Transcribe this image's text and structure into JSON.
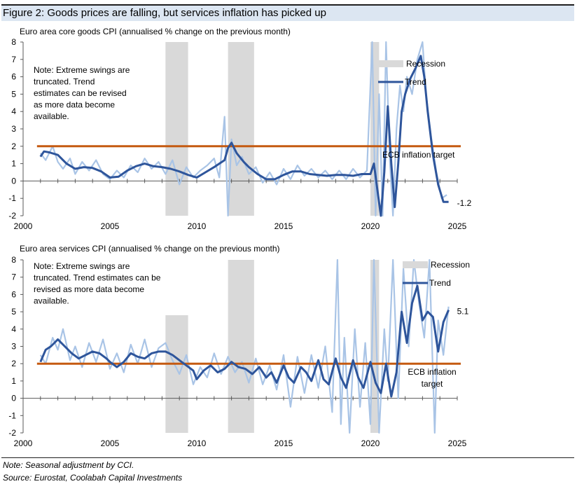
{
  "figure_title": "Figure 2: Goods prices are falling, but services inflation has picked up",
  "footer": {
    "note": "Note: Seasonal adjustment by CCI.",
    "source": "Source: Eurostat, Coolabah Capital Investments"
  },
  "colors": {
    "raw": "#a9c4e6",
    "trend": "#2e559b",
    "target": "#c55a11",
    "recession": "#d9d9d9",
    "title_band": "#dce6f2"
  },
  "chart_data": [
    {
      "type": "line",
      "title": "Euro area core goods CPI (annualised % change on the previous month)",
      "xlim": [
        2000,
        2025
      ],
      "ylim": [
        -2,
        8
      ],
      "xticks": [
        2000,
        2005,
        2010,
        2015,
        2020,
        2025
      ],
      "yticks": [
        -2,
        -1,
        0,
        1,
        2,
        3,
        4,
        5,
        6,
        7,
        8
      ],
      "note": "Note: Extreme swings are truncated. Trend estimates can be revised as more data become available.",
      "note_lines": [
        "Note: Extreme swings are",
        "truncated. Trend",
        "estimates can be revised",
        "as more data become",
        "available."
      ],
      "recessions": [
        [
          2008.2,
          2009.5
        ],
        [
          2011.8,
          2013.3
        ],
        [
          2020.0,
          2020.5
        ]
      ],
      "legend": {
        "recession": "Recession",
        "trend": "Trend"
      },
      "target": {
        "value": 2,
        "label": "ECB inflation target",
        "label_lines": [
          "ECB inflation target"
        ],
        "start": 2000.8
      },
      "end_label": "-1.2",
      "series": [
        {
          "name": "Trend",
          "x": [
            2001.0,
            2001.2,
            2001.5,
            2002.0,
            2002.5,
            2003.0,
            2003.5,
            2004.0,
            2004.5,
            2005.0,
            2005.5,
            2006.0,
            2006.5,
            2007.0,
            2007.5,
            2008.0,
            2008.5,
            2009.0,
            2009.5,
            2010.0,
            2010.5,
            2011.0,
            2011.3,
            2011.6,
            2011.8,
            2012.0,
            2012.3,
            2012.7,
            2013.0,
            2013.5,
            2014.0,
            2014.5,
            2015.0,
            2015.5,
            2016.0,
            2016.5,
            2017.0,
            2017.5,
            2018.0,
            2018.5,
            2019.0,
            2019.5,
            2020.0,
            2020.2,
            2020.4,
            2020.6,
            2020.8,
            2021.0,
            2021.2,
            2021.4,
            2021.6,
            2021.8,
            2022.0,
            2022.3,
            2022.6,
            2022.9,
            2023.1,
            2023.3,
            2023.6,
            2023.9,
            2024.2,
            2024.5
          ],
          "values": [
            1.4,
            1.7,
            1.65,
            1.5,
            1.0,
            0.7,
            0.8,
            0.75,
            0.55,
            0.2,
            0.25,
            0.6,
            0.85,
            1.0,
            0.85,
            0.8,
            0.7,
            0.55,
            0.35,
            0.2,
            0.5,
            0.8,
            1.0,
            1.2,
            1.9,
            2.2,
            1.6,
            1.1,
            0.8,
            0.4,
            0.1,
            0.1,
            0.35,
            0.55,
            0.55,
            0.4,
            0.35,
            0.3,
            0.35,
            0.35,
            0.3,
            0.4,
            0.4,
            1.0,
            -0.5,
            -2.0,
            0.5,
            4.3,
            1.0,
            -1.5,
            1.0,
            4.0,
            5.0,
            5.9,
            6.5,
            7.2,
            6.0,
            4.0,
            1.5,
            -0.2,
            -1.2,
            -1.2
          ]
        },
        {
          "name": "Raw (annualised m/m)",
          "x": [
            2001.0,
            2001.3,
            2001.7,
            2002.0,
            2002.3,
            2002.7,
            2003.0,
            2003.4,
            2003.8,
            2004.2,
            2004.6,
            2005.0,
            2005.4,
            2005.8,
            2006.2,
            2006.6,
            2007.0,
            2007.4,
            2007.8,
            2008.2,
            2008.6,
            2009.0,
            2009.4,
            2009.8,
            2010.2,
            2010.6,
            2011.0,
            2011.3,
            2011.6,
            2011.8,
            2012.0,
            2012.3,
            2012.6,
            2013.0,
            2013.4,
            2013.8,
            2014.2,
            2014.6,
            2015.0,
            2015.4,
            2015.8,
            2016.2,
            2016.6,
            2017.0,
            2017.4,
            2017.8,
            2018.2,
            2018.6,
            2019.0,
            2019.4,
            2019.8,
            2020.1,
            2020.3,
            2020.5,
            2020.7,
            2020.9,
            2021.1,
            2021.3,
            2021.5,
            2021.7,
            2021.9,
            2022.1,
            2022.4,
            2022.7,
            2023.0,
            2023.2,
            2023.5,
            2023.8,
            2024.1,
            2024.4
          ],
          "values": [
            1.6,
            1.2,
            2.0,
            1.1,
            0.7,
            1.3,
            0.4,
            1.1,
            0.6,
            1.2,
            0.4,
            0.1,
            0.6,
            0.2,
            0.9,
            0.5,
            1.3,
            0.7,
            1.1,
            0.4,
            1.2,
            -0.2,
            0.8,
            0.2,
            0.6,
            0.9,
            1.3,
            0.2,
            3.7,
            -2.0,
            2.4,
            0.9,
            1.4,
            0.4,
            0.8,
            -0.1,
            0.5,
            -0.2,
            0.7,
            0.1,
            0.9,
            0.3,
            0.7,
            0.2,
            0.6,
            0.1,
            0.6,
            0.1,
            0.7,
            0.2,
            0.6,
            8.0,
            -2.0,
            5.0,
            -2.0,
            8.0,
            1.5,
            -2.0,
            3.0,
            5.5,
            4.0,
            6.0,
            5.0,
            7.0,
            8.0,
            5.0,
            2.5,
            0.5,
            -1.0,
            -0.8
          ]
        }
      ]
    },
    {
      "type": "line",
      "title": "Euro area services CPI (annualised % change on the previous month)",
      "xlim": [
        2000,
        2025
      ],
      "ylim": [
        -2,
        8
      ],
      "xticks": [
        2000,
        2005,
        2010,
        2015,
        2020,
        2025
      ],
      "yticks": [
        -2,
        -1,
        0,
        1,
        2,
        3,
        4,
        5,
        6,
        7,
        8
      ],
      "note": "Note: Extreme swings are truncated. Trend estimates can be revised as more data become available.",
      "note_lines": [
        "Note: Extreme swings are",
        "truncated. Trend estimates can be",
        "revised as more data become",
        "available."
      ],
      "recessions": [
        [
          2008.2,
          2009.5
        ],
        [
          2011.8,
          2013.3
        ],
        [
          2020.0,
          2020.5
        ]
      ],
      "recession_tops": [
        4.8,
        8,
        8
      ],
      "legend": {
        "recession": "Recession",
        "trend": "Trend"
      },
      "target": {
        "value": 2,
        "label": "ECB inflation target",
        "label_lines": [
          "ECB inflation",
          "target"
        ],
        "start": 2000.8
      },
      "end_label": "5.1",
      "series": [
        {
          "name": "Trend",
          "x": [
            2001.0,
            2001.3,
            2001.6,
            2002.0,
            2002.4,
            2002.8,
            2003.2,
            2003.6,
            2004.0,
            2004.4,
            2004.8,
            2005.0,
            2005.4,
            2005.8,
            2006.2,
            2006.6,
            2007.0,
            2007.4,
            2007.8,
            2008.2,
            2008.6,
            2009.0,
            2009.4,
            2009.8,
            2010.0,
            2010.4,
            2010.8,
            2011.2,
            2011.6,
            2012.0,
            2012.4,
            2012.8,
            2013.2,
            2013.6,
            2014.0,
            2014.3,
            2014.6,
            2015.0,
            2015.3,
            2015.6,
            2016.0,
            2016.3,
            2016.6,
            2017.0,
            2017.3,
            2017.6,
            2018.0,
            2018.3,
            2018.6,
            2019.0,
            2019.3,
            2019.6,
            2020.0,
            2020.3,
            2020.6,
            2020.9,
            2021.2,
            2021.5,
            2021.8,
            2022.1,
            2022.4,
            2022.7,
            2023.0,
            2023.3,
            2023.6,
            2023.9,
            2024.2,
            2024.5
          ],
          "values": [
            2.1,
            2.8,
            3.0,
            3.4,
            3.0,
            2.6,
            2.3,
            2.5,
            2.7,
            2.6,
            2.3,
            2.1,
            1.8,
            2.1,
            2.6,
            2.4,
            2.3,
            2.6,
            2.7,
            2.7,
            2.5,
            2.2,
            1.9,
            1.6,
            1.1,
            1.6,
            1.9,
            1.5,
            1.7,
            2.1,
            1.8,
            1.7,
            1.4,
            1.8,
            1.2,
            1.5,
            0.9,
            1.9,
            1.2,
            0.9,
            1.8,
            1.5,
            1.0,
            2.2,
            1.1,
            0.8,
            2.3,
            1.2,
            0.6,
            2.2,
            1.2,
            0.6,
            2.1,
            0.9,
            0.3,
            2.0,
            0.1,
            1.5,
            5.0,
            3.2,
            5.5,
            6.5,
            4.5,
            5.0,
            4.7,
            2.7,
            4.4,
            5.1
          ]
        },
        {
          "name": "Raw (annualised m/m)",
          "x": [
            2001.0,
            2001.3,
            2001.7,
            2002.0,
            2002.3,
            2002.7,
            2003.0,
            2003.4,
            2003.8,
            2004.2,
            2004.6,
            2005.0,
            2005.4,
            2005.8,
            2006.2,
            2006.6,
            2007.0,
            2007.4,
            2007.8,
            2008.2,
            2008.6,
            2009.0,
            2009.4,
            2009.8,
            2010.2,
            2010.6,
            2011.0,
            2011.4,
            2011.8,
            2012.2,
            2012.6,
            2013.0,
            2013.4,
            2013.8,
            2014.2,
            2014.6,
            2015.0,
            2015.4,
            2015.8,
            2016.2,
            2016.6,
            2017.0,
            2017.4,
            2017.8,
            2018.1,
            2018.3,
            2018.5,
            2018.8,
            2019.1,
            2019.4,
            2019.7,
            2020.0,
            2020.2,
            2020.5,
            2020.8,
            2021.0,
            2021.3,
            2021.6,
            2021.9,
            2022.2,
            2022.5,
            2022.8,
            2023.1,
            2023.4,
            2023.7,
            2023.9,
            2024.2,
            2024.5
          ],
          "values": [
            2.5,
            2.0,
            3.5,
            2.8,
            4.0,
            2.2,
            3.0,
            1.8,
            3.2,
            2.1,
            3.4,
            1.7,
            2.6,
            1.5,
            3.1,
            2.0,
            3.4,
            1.8,
            2.9,
            3.2,
            2.2,
            1.4,
            2.5,
            0.8,
            1.8,
            1.2,
            2.6,
            1.4,
            2.4,
            1.5,
            2.1,
            0.9,
            2.3,
            0.8,
            1.9,
            0.5,
            2.5,
            -0.5,
            2.4,
            0.3,
            2.5,
            0.6,
            3.0,
            -0.8,
            8.0,
            -1.5,
            3.5,
            -2.0,
            4.0,
            -0.5,
            3.2,
            -1.5,
            8.0,
            -2.0,
            4.0,
            1.0,
            8.0,
            0.0,
            7.5,
            3.0,
            8.0,
            5.5,
            3.5,
            8.0,
            -2.0,
            4.5,
            2.5,
            5.3
          ]
        }
      ]
    }
  ]
}
